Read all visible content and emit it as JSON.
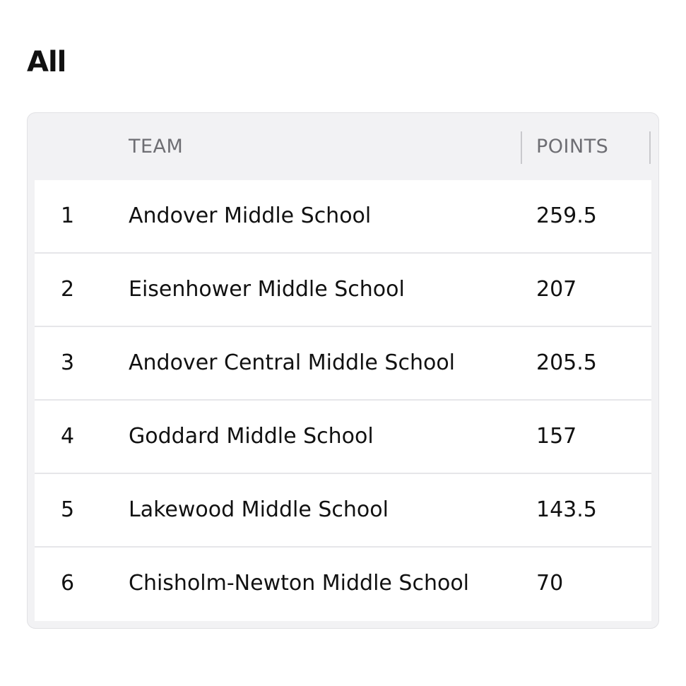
{
  "heading": "All",
  "table": {
    "columns": {
      "rank": "",
      "team": "TEAM",
      "points": "POINTS"
    },
    "rows": [
      {
        "rank": "1",
        "team": "Andover Middle School",
        "points": "259.5"
      },
      {
        "rank": "2",
        "team": "Eisenhower Middle School",
        "points": "207"
      },
      {
        "rank": "3",
        "team": "Andover Central Middle School",
        "points": "205.5"
      },
      {
        "rank": "4",
        "team": "Goddard Middle School",
        "points": "157"
      },
      {
        "rank": "5",
        "team": "Lakewood Middle School",
        "points": "143.5"
      },
      {
        "rank": "6",
        "team": "Chisholm-Newton Middle School",
        "points": "70"
      }
    ]
  },
  "colors": {
    "header_background": "#f2f2f4",
    "header_text": "#6e6e73",
    "row_background": "#ffffff",
    "text": "#111111",
    "divider": "#e6e6e9"
  }
}
